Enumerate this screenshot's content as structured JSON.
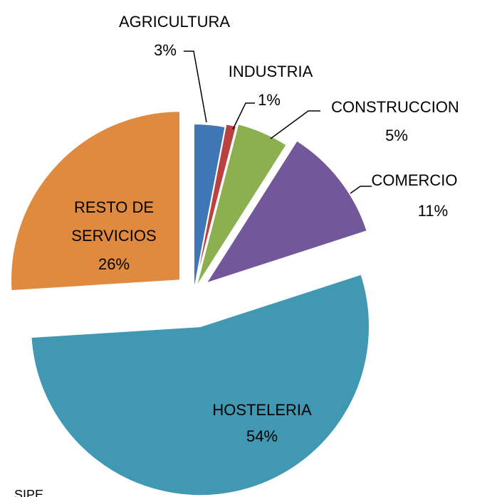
{
  "chart_data": {
    "type": "pie",
    "categories": [
      "AGRICULTURA",
      "INDUSTRIA",
      "CONSTRUCCION",
      "COMERCIO",
      "HOSTELERIA",
      "RESTO DE SERVICIOS"
    ],
    "values": [
      3,
      1,
      5,
      11,
      54,
      26
    ],
    "value_labels": [
      "3%",
      "1%",
      "5%",
      "11%",
      "54%",
      "26%"
    ],
    "colors": [
      "#3f77b6",
      "#bb4040",
      "#8cb050",
      "#72589a",
      "#4198b2",
      "#df8a3f"
    ],
    "source": "SIPE"
  }
}
